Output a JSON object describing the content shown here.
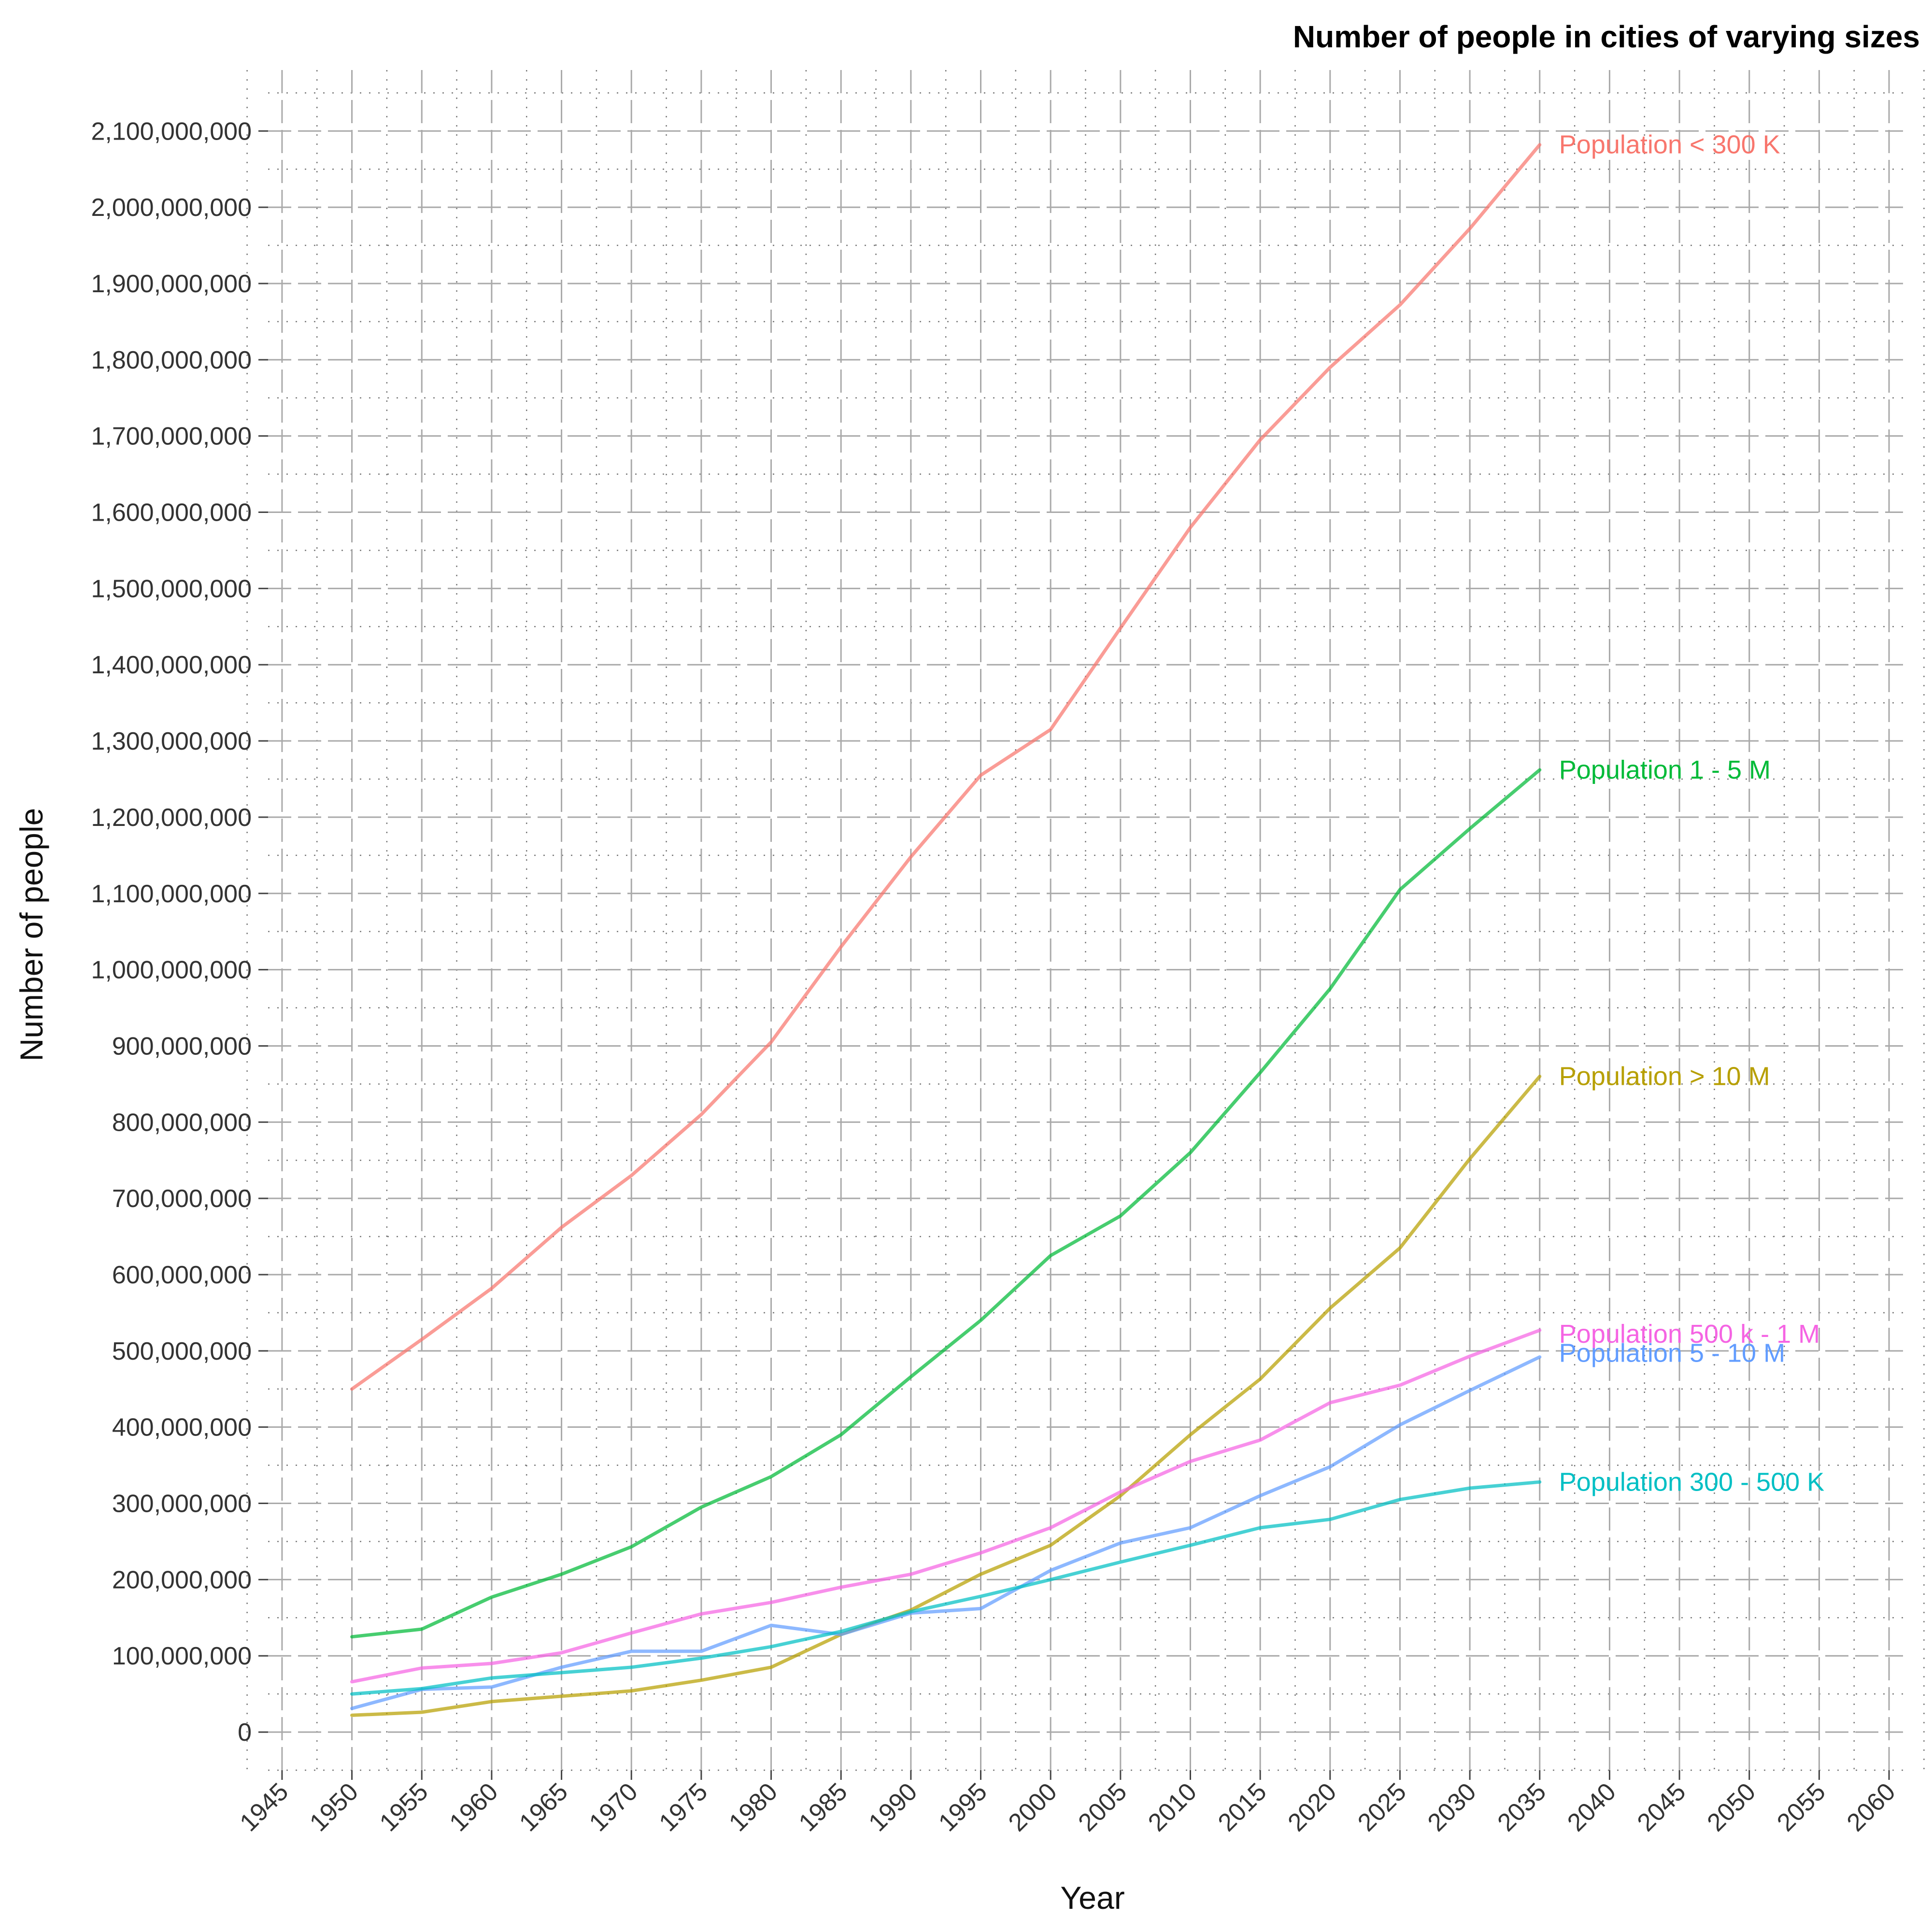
{
  "chart_data": {
    "type": "line",
    "title": "Number of people in cities of varying sizes",
    "xlabel": "Year",
    "ylabel": "Number of people",
    "xlim": [
      1944,
      2061
    ],
    "ylim": [
      -50000000,
      2180000000
    ],
    "x_ticks": [
      1945,
      1950,
      1955,
      1960,
      1965,
      1970,
      1975,
      1980,
      1985,
      1990,
      1995,
      2000,
      2005,
      2010,
      2015,
      2020,
      2025,
      2030,
      2035,
      2040,
      2045,
      2050,
      2055,
      2060
    ],
    "x_tick_labels": [
      "1945",
      "1950",
      "1955",
      "1960",
      "1965",
      "1970",
      "1975",
      "1980",
      "1985",
      "1990",
      "1995",
      "2000",
      "2005",
      "2010",
      "2015",
      "2020",
      "2025",
      "2030",
      "2035",
      "2040",
      "2045",
      "2050",
      "2055",
      "2060"
    ],
    "y_ticks": [
      0,
      100000000,
      200000000,
      300000000,
      400000000,
      500000000,
      600000000,
      700000000,
      800000000,
      900000000,
      1000000000,
      1100000000,
      1200000000,
      1300000000,
      1400000000,
      1500000000,
      1600000000,
      1700000000,
      1800000000,
      1900000000,
      2000000000,
      2100000000
    ],
    "y_tick_labels": [
      "0",
      "100,000,000",
      "200,000,000",
      "300,000,000",
      "400,000,000",
      "500,000,000",
      "600,000,000",
      "700,000,000",
      "800,000,000",
      "900,000,000",
      "1,000,000,000",
      "1,100,000,000",
      "1,200,000,000",
      "1,300,000,000",
      "1,400,000,000",
      "1,500,000,000",
      "1,600,000,000",
      "1,700,000,000",
      "1,800,000,000",
      "1,900,000,000",
      "2,000,000,000",
      "2,100,000,000"
    ],
    "grid": true,
    "legend": "direct labels at line ends",
    "x": [
      1950,
      1955,
      1960,
      1965,
      1970,
      1975,
      1980,
      1985,
      1990,
      1995,
      2000,
      2005,
      2010,
      2015,
      2020,
      2025,
      2030,
      2035
    ],
    "series": [
      {
        "name": "Population < 300 K",
        "color": "#F8766D",
        "values": [
          450000000,
          515000000,
          582000000,
          662000000,
          730000000,
          810000000,
          905000000,
          1030000000,
          1148000000,
          1255000000,
          1315000000,
          1448000000,
          1580000000,
          1695000000,
          1790000000,
          1872000000,
          1972000000,
          2082000000
        ]
      },
      {
        "name": "Population 1 - 5 M",
        "color": "#00BA38",
        "values": [
          125000000,
          135000000,
          177000000,
          207000000,
          243000000,
          295000000,
          335000000,
          390000000,
          466000000,
          540000000,
          625000000,
          677000000,
          760000000,
          865000000,
          975000000,
          1105000000,
          1185000000,
          1262000000
        ]
      },
      {
        "name": "Population > 10 M",
        "color": "#B79F00",
        "values": [
          22000000,
          26000000,
          40000000,
          47000000,
          54000000,
          68000000,
          85000000,
          128000000,
          160000000,
          207000000,
          245000000,
          310000000,
          390000000,
          463000000,
          556000000,
          635000000,
          752000000,
          860000000
        ]
      },
      {
        "name": "Population 500 k - 1 M",
        "color": "#F564E3",
        "values": [
          66000000,
          84000000,
          90000000,
          104000000,
          130000000,
          155000000,
          170000000,
          190000000,
          207000000,
          235000000,
          268000000,
          315000000,
          355000000,
          383000000,
          432000000,
          455000000,
          493000000,
          527000000
        ]
      },
      {
        "name": "Population 5 - 10 M",
        "color": "#619CFF",
        "values": [
          31000000,
          56000000,
          59000000,
          85000000,
          106000000,
          106000000,
          140000000,
          128000000,
          156000000,
          162000000,
          212000000,
          248000000,
          268000000,
          310000000,
          348000000,
          403000000,
          448000000,
          492000000
        ]
      },
      {
        "name": "Population 300 - 500 K",
        "color": "#00BFC4",
        "values": [
          50000000,
          57000000,
          71000000,
          78000000,
          85000000,
          97000000,
          112000000,
          132000000,
          158000000,
          178000000,
          200000000,
          223000000,
          245000000,
          268000000,
          279000000,
          305000000,
          320000000,
          328000000
        ]
      }
    ]
  }
}
